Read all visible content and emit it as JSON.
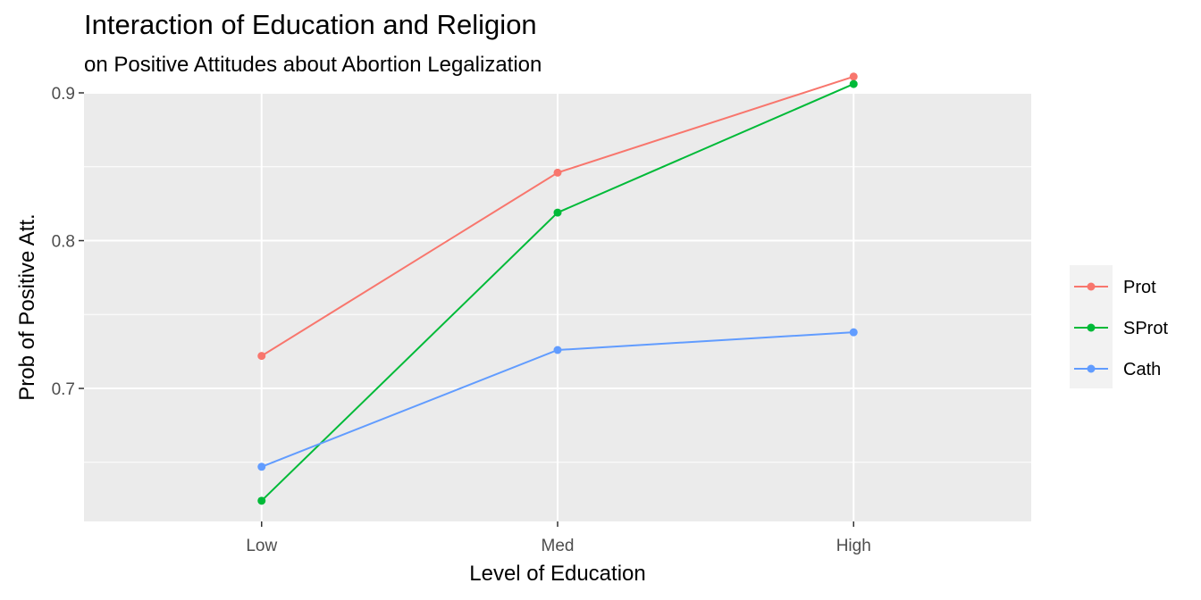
{
  "chart_data": {
    "type": "line",
    "title": "Interaction of Education and Religion",
    "subtitle": "on Positive Attitudes about Abortion Legalization",
    "xlabel": "Level of Education",
    "ylabel": "Prob of Positive Att.",
    "categories": [
      "Low",
      "Med",
      "High"
    ],
    "ylim": [
      0.61,
      0.9
    ],
    "yticks": [
      0.7,
      0.8,
      0.9
    ],
    "ytick_labels": [
      "0.7",
      "0.8",
      "0.9"
    ],
    "grid": true,
    "legend_position": "right",
    "series": [
      {
        "name": "Prot",
        "color": "#F8766D",
        "values": [
          0.722,
          0.846,
          0.911
        ]
      },
      {
        "name": "SProt",
        "color": "#00BA38",
        "values": [
          0.624,
          0.819,
          0.906
        ]
      },
      {
        "name": "Cath",
        "color": "#619CFF",
        "values": [
          0.647,
          0.726,
          0.738
        ]
      }
    ]
  }
}
